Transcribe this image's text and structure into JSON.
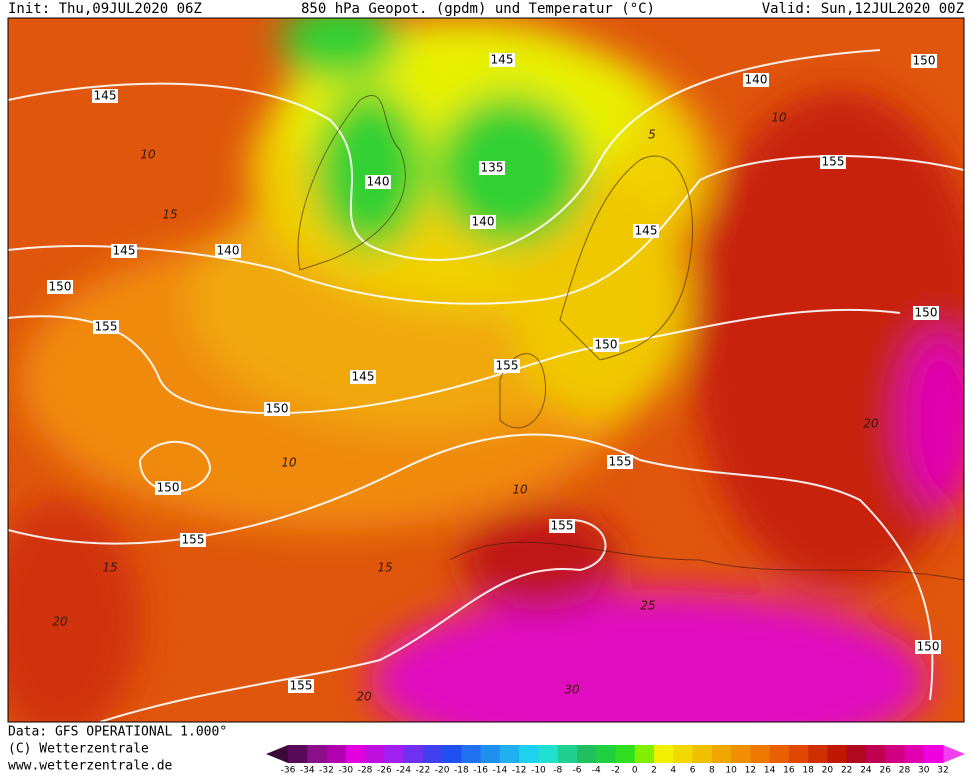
{
  "header": {
    "init": "Init: Thu,09JUL2020 06Z",
    "title": "850 hPa Geopot. (gpdm) und Temperatur (°C)",
    "valid": "Valid: Sun,12JUL2020 00Z"
  },
  "footer": {
    "data": "Data: GFS OPERATIONAL 1.000°",
    "copyright": "(C) Wetterzentrale",
    "url": "www.wetterzentrale.de"
  },
  "contour_labels": {
    "geopotential": [
      145,
      140,
      150,
      145,
      155,
      140,
      135,
      140,
      145,
      145,
      140,
      150,
      155,
      150,
      150,
      155,
      145,
      150,
      155,
      150,
      155,
      155,
      150,
      155
    ],
    "temperature": [
      10,
      15,
      10,
      5,
      10,
      10,
      15,
      15,
      20,
      25,
      30,
      20,
      20
    ]
  },
  "colorbar": {
    "ticks": [
      -36,
      -34,
      -32,
      -30,
      -28,
      -26,
      -24,
      -22,
      -20,
      -18,
      -16,
      -14,
      -12,
      -10,
      -8,
      -6,
      -4,
      -2,
      0,
      2,
      4,
      6,
      8,
      10,
      12,
      14,
      16,
      18,
      20,
      22,
      24,
      26,
      28,
      30,
      32
    ],
    "colors": [
      "#5a0a5a",
      "#8a108a",
      "#b000b0",
      "#e000e0",
      "#c010e0",
      "#a020f0",
      "#7030f0",
      "#4040f0",
      "#2050f0",
      "#2070f0",
      "#2090f0",
      "#20b0f0",
      "#20d0f0",
      "#20e0d0",
      "#20d090",
      "#20c060",
      "#20d040",
      "#30e020",
      "#80f000",
      "#f0f000",
      "#f0d800",
      "#f0c000",
      "#f0a800",
      "#f09000",
      "#f07800",
      "#e86000",
      "#e04800",
      "#d03000",
      "#c01800",
      "#b00820",
      "#c00050",
      "#d00080",
      "#e000b0",
      "#f000e0"
    ]
  }
}
